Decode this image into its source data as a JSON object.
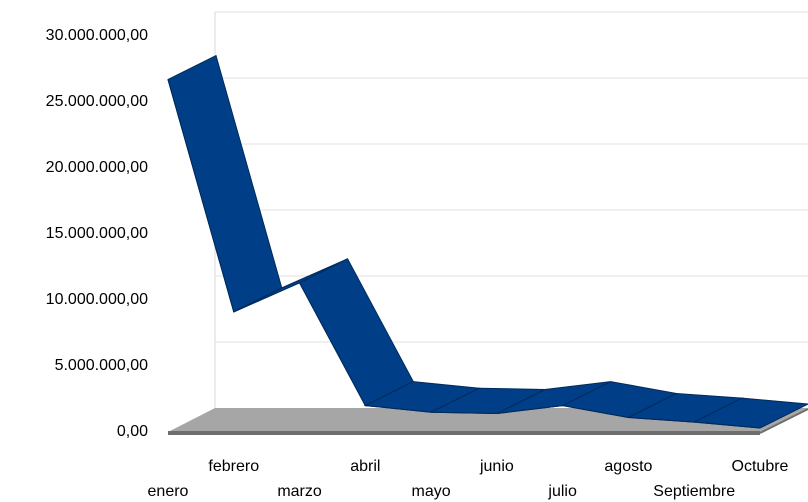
{
  "chart_data": {
    "type": "line3d",
    "categories": [
      "enero",
      "febrero",
      "marzo",
      "abril",
      "mayo",
      "junio",
      "julio",
      "agosto",
      "Septiembre",
      "Octubre"
    ],
    "values": [
      26700000,
      9100000,
      11300000,
      2000000,
      1500000,
      1400000,
      2000000,
      1100000,
      750000,
      300000
    ],
    "color": "#003f87",
    "ylim": [
      0,
      30000000
    ],
    "yticks": [
      {
        "value": 0,
        "label": "0,00"
      },
      {
        "value": 5000000,
        "label": "5.000.000,00"
      },
      {
        "value": 10000000,
        "label": "10.000.000,00"
      },
      {
        "value": 15000000,
        "label": "15.000.000,00"
      },
      {
        "value": 20000000,
        "label": "20.000.000,00"
      },
      {
        "value": 25000000,
        "label": "25.000.000,00"
      },
      {
        "value": 30000000,
        "label": "30.000.000,00"
      }
    ],
    "grid": true
  }
}
